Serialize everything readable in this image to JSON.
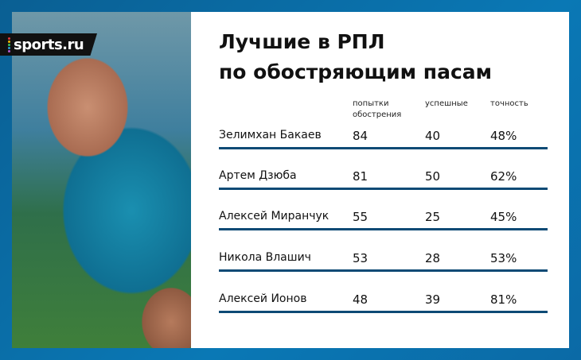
{
  "brand": {
    "logo_text": "sports.ru",
    "accent": "#0b6ea6",
    "line_color": "#0d4a75"
  },
  "title": {
    "line1": "Лучшие в РПЛ",
    "line2": "по обостряющим пасам"
  },
  "chart_data": {
    "type": "table",
    "title": "Лучшие в РПЛ по обостряющим пасам",
    "columns": [
      "",
      "попытки обострения",
      "успешные",
      "точность"
    ],
    "rows": [
      {
        "name": "Зелимхан Бакаев",
        "attempts": "84",
        "successful": "40",
        "accuracy": "48%"
      },
      {
        "name": "Артем Дзюба",
        "attempts": "81",
        "successful": "50",
        "accuracy": "62%"
      },
      {
        "name": "Алексей Миранчук",
        "attempts": "55",
        "successful": "25",
        "accuracy": "45%"
      },
      {
        "name": "Никола Влашич",
        "attempts": "53",
        "successful": "28",
        "accuracy": "53%"
      },
      {
        "name": "Алексей Ионов",
        "attempts": "48",
        "successful": "39",
        "accuracy": "81%"
      }
    ]
  },
  "headers": {
    "attempts_l1": "попытки",
    "attempts_l2": "обострения",
    "successful": "успешные",
    "accuracy": "точность"
  }
}
